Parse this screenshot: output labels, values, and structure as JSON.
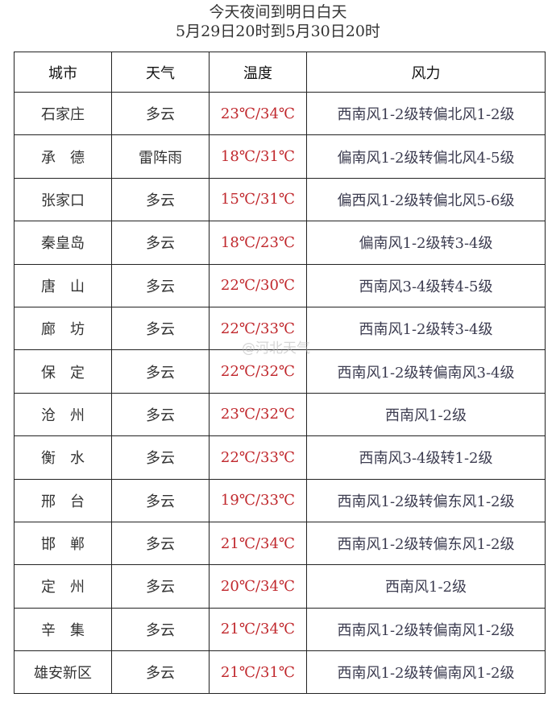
{
  "title": "今天夜间到明日白天",
  "subtitle": "5月29日20时到5月30日20时",
  "headers": [
    "城市",
    "天气",
    "温度",
    "风力"
  ],
  "rows": [
    {
      "city": "石家庄",
      "weather": "多云",
      "temp": "23℃/34℃",
      "wind": "西南风1-2级转偏北风1-2级"
    },
    {
      "city": "承　德",
      "weather": "雷阵雨",
      "temp": "18℃/31℃",
      "wind": "偏南风1-2级转偏北风4-5级"
    },
    {
      "city": "张家口",
      "weather": "多云",
      "temp": "15℃/31℃",
      "wind": "偏西风1-2级转偏北风5-6级"
    },
    {
      "city": "秦皇岛",
      "weather": "多云",
      "temp": "18℃/23℃",
      "wind": "偏南风1-2级转3-4级"
    },
    {
      "city": "唐　山",
      "weather": "多云",
      "temp": "22℃/30℃",
      "wind": "西南风3-4级转4-5级"
    },
    {
      "city": "廊　坊",
      "weather": "多云",
      "temp": "22℃/33℃",
      "wind": "西南风1-2级转3-4级"
    },
    {
      "city": "保　定",
      "weather": "多云",
      "temp": "22℃/32℃",
      "wind": "西南风1-2级转偏南风3-4级"
    },
    {
      "city": "沧　州",
      "weather": "多云",
      "temp": "23℃/32℃",
      "wind": "西南风1-2级"
    },
    {
      "city": "衡　水",
      "weather": "多云",
      "temp": "22℃/33℃",
      "wind": "西南风3-4级转1-2级"
    },
    {
      "city": "邢　台",
      "weather": "多云",
      "temp": "19℃/33℃",
      "wind": "西南风1-2级转偏东风1-2级"
    },
    {
      "city": "邯　郸",
      "weather": "多云",
      "temp": "21℃/34℃",
      "wind": "西南风1-2级转偏东风1-2级"
    },
    {
      "city": "定　州",
      "weather": "多云",
      "temp": "20℃/34℃",
      "wind": "西南风1-2级"
    },
    {
      "city": "辛　集",
      "weather": "多云",
      "temp": "21℃/34℃",
      "wind": "西南风1-2级转偏南风1-2级"
    },
    {
      "city": "雄安新区",
      "weather": "多云",
      "temp": "21℃/31℃",
      "wind": "西南风1-2级转偏南风1-2级"
    }
  ],
  "watermark": "@河北天气",
  "colors": {
    "temp": "#c0282d",
    "text": "#333333",
    "border": "#222222"
  }
}
